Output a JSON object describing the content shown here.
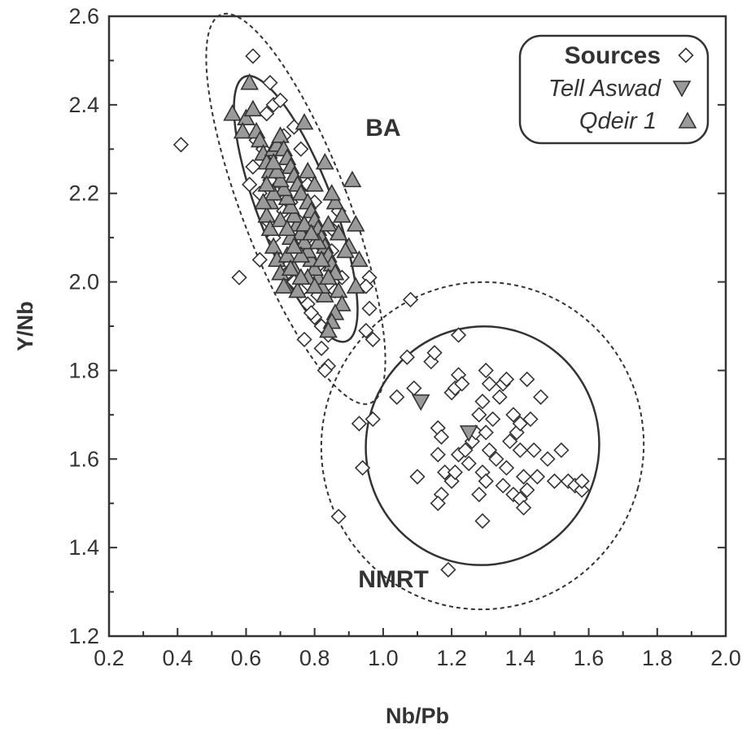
{
  "chart_data": {
    "type": "scatter",
    "xlabel": "Nb/Pb",
    "ylabel": "Y/Nb",
    "xlim": [
      0.2,
      2.0
    ],
    "ylim": [
      1.2,
      2.6
    ],
    "x_ticks": [
      "0.2",
      "0.4",
      "0.6",
      "0.8",
      "1.0",
      "1.2",
      "1.4",
      "1.6",
      "1.8",
      "2.0"
    ],
    "y_ticks": [
      "1.2",
      "1.4",
      "1.6",
      "1.8",
      "2.0",
      "2.2",
      "2.4",
      "2.6"
    ],
    "grid": false,
    "legend_position": "top-right",
    "legend_title": "Sources",
    "region_labels": [
      {
        "text": "BA",
        "x": 1.0,
        "y": 2.33
      },
      {
        "text": "NMRT",
        "x": 1.03,
        "y": 1.31
      }
    ],
    "series": [
      {
        "name": "Sources",
        "marker": "diamond-open",
        "points": [
          [
            0.41,
            2.31
          ],
          [
            0.62,
            2.51
          ],
          [
            0.67,
            2.45
          ],
          [
            0.58,
            2.01
          ],
          [
            0.64,
            2.05
          ],
          [
            0.68,
            2.4
          ],
          [
            0.66,
            2.38
          ],
          [
            0.63,
            2.32
          ],
          [
            0.65,
            2.3
          ],
          [
            0.7,
            2.41
          ],
          [
            0.62,
            2.26
          ],
          [
            0.61,
            2.22
          ],
          [
            0.64,
            2.2
          ],
          [
            0.67,
            2.28
          ],
          [
            0.69,
            2.25
          ],
          [
            0.71,
            2.33
          ],
          [
            0.74,
            2.35
          ],
          [
            0.76,
            2.3
          ],
          [
            0.78,
            2.22
          ],
          [
            0.8,
            2.18
          ],
          [
            0.66,
            2.14
          ],
          [
            0.68,
            2.1
          ],
          [
            0.7,
            2.05
          ],
          [
            0.72,
            2.02
          ],
          [
            0.74,
            2.0
          ],
          [
            0.76,
            1.98
          ],
          [
            0.78,
            1.95
          ],
          [
            0.8,
            1.92
          ],
          [
            0.82,
            1.9
          ],
          [
            0.84,
            1.88
          ],
          [
            0.77,
            1.87
          ],
          [
            0.79,
            1.93
          ],
          [
            0.81,
            1.97
          ],
          [
            0.83,
            2.02
          ],
          [
            0.85,
            2.07
          ],
          [
            0.82,
            1.85
          ],
          [
            0.84,
            1.81
          ],
          [
            0.83,
            1.8
          ],
          [
            0.86,
            1.98
          ],
          [
            0.88,
            2.01
          ],
          [
            0.75,
            2.14
          ],
          [
            0.73,
            2.18
          ],
          [
            0.71,
            2.16
          ],
          [
            0.69,
            2.2
          ],
          [
            0.67,
            2.23
          ],
          [
            0.85,
            2.12
          ],
          [
            0.87,
            2.16
          ],
          [
            0.82,
            2.08
          ],
          [
            0.8,
            2.04
          ],
          [
            0.78,
            2.1
          ],
          [
            0.96,
            2.01
          ],
          [
            0.95,
            1.99
          ],
          [
            0.96,
            1.94
          ],
          [
            0.95,
            1.89
          ],
          [
            0.97,
            1.87
          ],
          [
            0.93,
            1.68
          ],
          [
            0.97,
            1.69
          ],
          [
            0.94,
            1.58
          ],
          [
            0.87,
            1.47
          ],
          [
            1.08,
            1.96
          ],
          [
            1.07,
            1.83
          ],
          [
            1.04,
            1.74
          ],
          [
            1.09,
            1.76
          ],
          [
            1.1,
            1.56
          ],
          [
            1.14,
            1.82
          ],
          [
            1.15,
            1.84
          ],
          [
            1.16,
            1.67
          ],
          [
            1.17,
            1.65
          ],
          [
            1.16,
            1.61
          ],
          [
            1.18,
            1.57
          ],
          [
            1.17,
            1.52
          ],
          [
            1.16,
            1.5
          ],
          [
            1.2,
            1.75
          ],
          [
            1.21,
            1.76
          ],
          [
            1.22,
            1.79
          ],
          [
            1.23,
            1.77
          ],
          [
            1.22,
            1.88
          ],
          [
            1.2,
            1.55
          ],
          [
            1.21,
            1.57
          ],
          [
            1.22,
            1.61
          ],
          [
            1.24,
            1.62
          ],
          [
            1.25,
            1.59
          ],
          [
            1.26,
            1.64
          ],
          [
            1.27,
            1.66
          ],
          [
            1.28,
            1.7
          ],
          [
            1.29,
            1.73
          ],
          [
            1.3,
            1.8
          ],
          [
            1.31,
            1.77
          ],
          [
            1.32,
            1.69
          ],
          [
            1.3,
            1.66
          ],
          [
            1.31,
            1.62
          ],
          [
            1.33,
            1.6
          ],
          [
            1.29,
            1.57
          ],
          [
            1.3,
            1.55
          ],
          [
            1.28,
            1.52
          ],
          [
            1.29,
            1.46
          ],
          [
            1.34,
            1.74
          ],
          [
            1.35,
            1.77
          ],
          [
            1.36,
            1.78
          ],
          [
            1.38,
            1.7
          ],
          [
            1.37,
            1.64
          ],
          [
            1.36,
            1.58
          ],
          [
            1.35,
            1.54
          ],
          [
            1.38,
            1.52
          ],
          [
            1.4,
            1.51
          ],
          [
            1.41,
            1.49
          ],
          [
            1.42,
            1.53
          ],
          [
            1.41,
            1.56
          ],
          [
            1.4,
            1.62
          ],
          [
            1.39,
            1.66
          ],
          [
            1.4,
            1.68
          ],
          [
            1.42,
            1.78
          ],
          [
            1.43,
            1.69
          ],
          [
            1.44,
            1.62
          ],
          [
            1.45,
            1.56
          ],
          [
            1.46,
            1.74
          ],
          [
            1.48,
            1.6
          ],
          [
            1.5,
            1.55
          ],
          [
            1.52,
            1.62
          ],
          [
            1.54,
            1.55
          ],
          [
            1.56,
            1.54
          ],
          [
            1.58,
            1.53
          ],
          [
            1.58,
            1.55
          ],
          [
            1.19,
            1.35
          ]
        ]
      },
      {
        "name": "Tell Aswad",
        "marker": "triangle-down-filled",
        "points": [
          [
            1.11,
            1.73
          ],
          [
            1.25,
            1.66
          ]
        ]
      },
      {
        "name": "Qdeir 1",
        "marker": "triangle-up-filled",
        "points": [
          [
            0.61,
            2.45
          ],
          [
            0.56,
            2.38
          ],
          [
            0.6,
            2.37
          ],
          [
            0.62,
            2.39
          ],
          [
            0.59,
            2.34
          ],
          [
            0.63,
            2.34
          ],
          [
            0.64,
            2.32
          ],
          [
            0.65,
            2.29
          ],
          [
            0.66,
            2.27
          ],
          [
            0.67,
            2.25
          ],
          [
            0.68,
            2.3
          ],
          [
            0.69,
            2.31
          ],
          [
            0.7,
            2.33
          ],
          [
            0.71,
            2.3
          ],
          [
            0.72,
            2.28
          ],
          [
            0.73,
            2.26
          ],
          [
            0.74,
            2.24
          ],
          [
            0.75,
            2.22
          ],
          [
            0.76,
            2.2
          ],
          [
            0.77,
            2.36
          ],
          [
            0.78,
            2.18
          ],
          [
            0.79,
            2.16
          ],
          [
            0.8,
            2.14
          ],
          [
            0.81,
            2.12
          ],
          [
            0.82,
            2.1
          ],
          [
            0.83,
            2.08
          ],
          [
            0.84,
            2.06
          ],
          [
            0.85,
            2.04
          ],
          [
            0.86,
            2.02
          ],
          [
            0.87,
            1.98
          ],
          [
            0.88,
            1.95
          ],
          [
            0.86,
            1.93
          ],
          [
            0.85,
            1.91
          ],
          [
            0.84,
            1.89
          ],
          [
            0.83,
            1.97
          ],
          [
            0.82,
            1.99
          ],
          [
            0.81,
            2.01
          ],
          [
            0.8,
            2.03
          ],
          [
            0.79,
            2.05
          ],
          [
            0.78,
            2.07
          ],
          [
            0.77,
            2.09
          ],
          [
            0.76,
            2.11
          ],
          [
            0.75,
            2.13
          ],
          [
            0.74,
            2.15
          ],
          [
            0.73,
            2.17
          ],
          [
            0.72,
            2.19
          ],
          [
            0.71,
            2.21
          ],
          [
            0.7,
            2.23
          ],
          [
            0.69,
            2.25
          ],
          [
            0.68,
            2.27
          ],
          [
            0.67,
            2.18
          ],
          [
            0.66,
            2.15
          ],
          [
            0.67,
            2.12
          ],
          [
            0.68,
            2.08
          ],
          [
            0.69,
            2.05
          ],
          [
            0.7,
            2.02
          ],
          [
            0.71,
            1.99
          ],
          [
            0.72,
            2.06
          ],
          [
            0.73,
            2.1
          ],
          [
            0.74,
            2.03
          ],
          [
            0.75,
            1.98
          ],
          [
            0.76,
            2.06
          ],
          [
            0.77,
            2.13
          ],
          [
            0.78,
            2.01
          ],
          [
            0.8,
            1.99
          ],
          [
            0.82,
            2.05
          ],
          [
            0.84,
            2.13
          ],
          [
            0.86,
            2.18
          ],
          [
            0.88,
            2.15
          ],
          [
            0.9,
            2.08
          ],
          [
            0.91,
            2.23
          ],
          [
            0.92,
            2.13
          ],
          [
            0.93,
            2.05
          ],
          [
            0.92,
            1.99
          ],
          [
            0.83,
            2.27
          ],
          [
            0.85,
            2.2
          ],
          [
            0.87,
            2.11
          ],
          [
            0.89,
            2.07
          ],
          [
            0.78,
            2.25
          ],
          [
            0.8,
            2.22
          ],
          [
            0.74,
            2.08
          ],
          [
            0.7,
            2.14
          ],
          [
            0.68,
            2.2
          ],
          [
            0.66,
            2.22
          ],
          [
            0.72,
            2.12
          ],
          [
            0.81,
            2.09
          ],
          [
            0.79,
            2.11
          ],
          [
            0.65,
            2.18
          ],
          [
            0.73,
            2.03
          ],
          [
            0.76,
            2.01
          ],
          [
            0.84,
            2.01
          ]
        ]
      }
    ],
    "ellipses": [
      {
        "group": "BA",
        "style": "solid",
        "cx": 0.745,
        "cy": 2.165,
        "rx": 0.11,
        "ry": 0.32,
        "rotation_deg": -21
      },
      {
        "group": "BA",
        "style": "dashed",
        "cx": 0.745,
        "cy": 2.165,
        "rx": 0.155,
        "ry": 0.47,
        "rotation_deg": -21
      },
      {
        "group": "NMRT",
        "style": "solid",
        "cx": 1.29,
        "cy": 1.63,
        "rx": 0.34,
        "ry": 0.27,
        "rotation_deg": 15
      },
      {
        "group": "NMRT",
        "style": "dashed",
        "cx": 1.29,
        "cy": 1.63,
        "rx": 0.47,
        "ry": 0.37,
        "rotation_deg": 15
      }
    ]
  }
}
